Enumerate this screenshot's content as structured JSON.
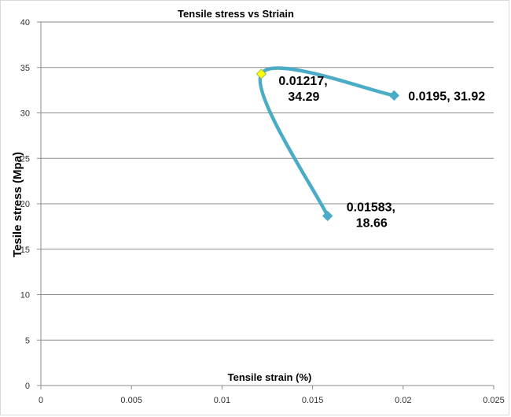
{
  "chart_data": {
    "type": "scatter",
    "title": "Tensile stress vs Striain",
    "xlabel": "Tensile strain (%)",
    "ylabel": "Tesile stress (Mpa)",
    "xlim": [
      0,
      0.025
    ],
    "ylim": [
      0,
      40
    ],
    "xticks": [
      "0",
      "0.005",
      "0.01",
      "0.015",
      "0.02",
      "0.025"
    ],
    "yticks": [
      "0",
      "5",
      "10",
      "15",
      "20",
      "25",
      "30",
      "35",
      "40"
    ],
    "grid": "horizontal",
    "line_color": "#4bacc6",
    "highlight_color": "#ffff00",
    "smooth": true,
    "series": [
      {
        "x": [
          0.0195,
          0.01217,
          0.01583
        ],
        "y": [
          31.92,
          34.29,
          18.66
        ],
        "labels": [
          [
            "0.0195, 31.92"
          ],
          [
            "0.01217,",
            "34.29"
          ],
          [
            "0.01583,",
            "18.66"
          ]
        ]
      }
    ]
  }
}
